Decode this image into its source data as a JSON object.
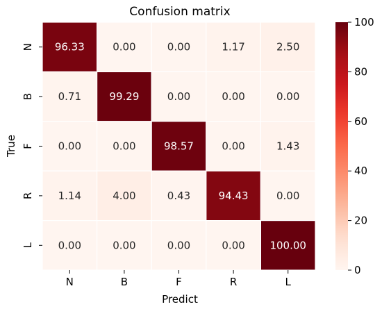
{
  "chart_data": {
    "type": "heatmap",
    "title": "Confusion matrix",
    "xlabel": "Predict",
    "ylabel": "True",
    "x_categories": [
      "N",
      "B",
      "F",
      "R",
      "L"
    ],
    "y_categories": [
      "N",
      "B",
      "F",
      "R",
      "L"
    ],
    "values": [
      [
        96.33,
        0.0,
        0.0,
        1.17,
        2.5
      ],
      [
        0.71,
        99.29,
        0.0,
        0.0,
        0.0
      ],
      [
        0.0,
        0.0,
        98.57,
        0.0,
        1.43
      ],
      [
        1.14,
        4.0,
        0.43,
        94.43,
        0.0
      ],
      [
        0.0,
        0.0,
        0.0,
        0.0,
        100.0
      ]
    ],
    "cell_labels": [
      [
        "96.33",
        "0.00",
        "0.00",
        "1.17",
        "2.50"
      ],
      [
        "0.71",
        "99.29",
        "0.00",
        "0.00",
        "0.00"
      ],
      [
        "0.00",
        "0.00",
        "98.57",
        "0.00",
        "1.43"
      ],
      [
        "1.14",
        "4.00",
        "0.43",
        "94.43",
        "0.00"
      ],
      [
        "0.00",
        "0.00",
        "0.00",
        "0.00",
        "100.00"
      ]
    ],
    "colorbar": {
      "range": [
        0,
        100
      ],
      "ticks": [
        0,
        20,
        40,
        60,
        80,
        100
      ],
      "colormap": "Reds",
      "color_low": "#fff5f0",
      "color_high": "#67000d"
    },
    "grid": true
  }
}
